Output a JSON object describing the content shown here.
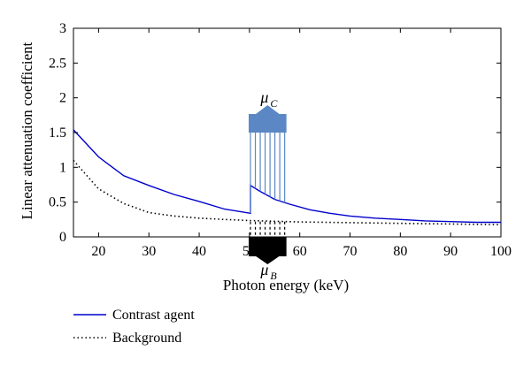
{
  "chart_data": {
    "type": "line",
    "xlabel": "Photon energy (keV)",
    "ylabel": "Linear attenuation coefficient",
    "xlim": [
      15,
      100
    ],
    "ylim": [
      0,
      3
    ],
    "xticks": [
      20,
      30,
      40,
      50,
      60,
      70,
      80,
      90,
      100
    ],
    "yticks": [
      0,
      0.5,
      1,
      1.5,
      2,
      2.5,
      3
    ],
    "grid": false,
    "legend_position": "below",
    "series": [
      {
        "name": "Contrast agent",
        "color": "#0000cc",
        "style": "solid",
        "x": [
          15,
          20,
          25,
          30,
          35,
          40,
          45,
          50.2,
          50.2,
          52,
          55,
          58,
          62,
          66,
          70,
          75,
          80,
          85,
          90,
          95,
          100
        ],
        "y": [
          1.54,
          1.15,
          0.88,
          0.74,
          0.61,
          0.51,
          0.4,
          0.34,
          0.74,
          0.66,
          0.54,
          0.47,
          0.39,
          0.34,
          0.3,
          0.27,
          0.25,
          0.23,
          0.22,
          0.21,
          0.21
        ]
      },
      {
        "name": "Background",
        "color": "#000000",
        "style": "dotted",
        "x": [
          15,
          20,
          25,
          30,
          35,
          40,
          45,
          50,
          55,
          60,
          65,
          70,
          75,
          80,
          85,
          90,
          95,
          100
        ],
        "y": [
          1.1,
          0.69,
          0.48,
          0.35,
          0.3,
          0.27,
          0.25,
          0.235,
          0.225,
          0.215,
          0.21,
          0.205,
          0.2,
          0.195,
          0.19,
          0.185,
          0.18,
          0.175
        ]
      }
    ],
    "annotations": [
      {
        "label_main": "μ",
        "label_sub": "C",
        "color": "#5b87c4",
        "x_range": [
          50.2,
          57
        ],
        "y_bottom_start": 0.74,
        "y_top": 1.5,
        "direction": "up"
      },
      {
        "label_main": "μ",
        "label_sub": "B",
        "color": "#000000",
        "x_range": [
          50.2,
          57
        ],
        "y_top": 0.22,
        "y_bottom": 0,
        "direction": "down"
      }
    ]
  }
}
